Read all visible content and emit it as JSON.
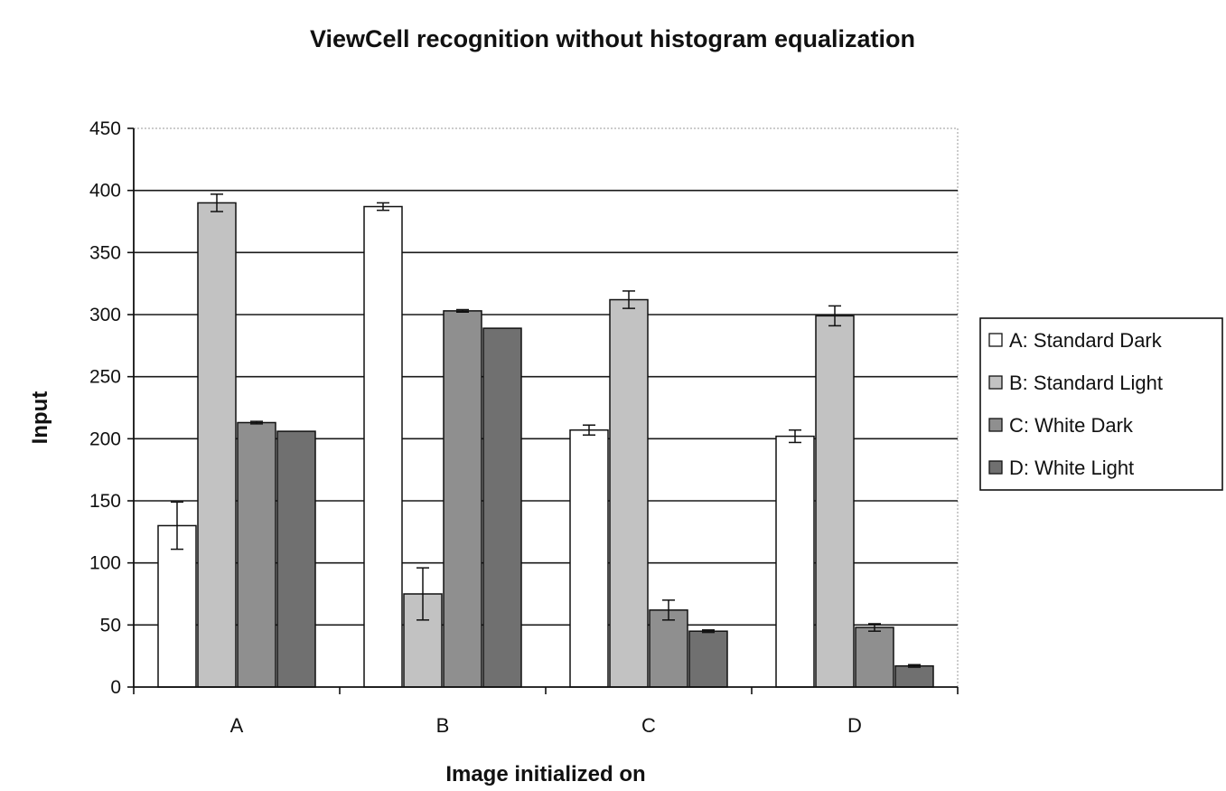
{
  "chart_data": {
    "type": "bar",
    "title": "ViewCell recognition without histogram equalization",
    "xlabel": "Image initialized on",
    "ylabel": "Input",
    "categories": [
      "A",
      "B",
      "C",
      "D"
    ],
    "ylim": [
      0,
      450
    ],
    "yticks": [
      0,
      50,
      100,
      150,
      200,
      250,
      300,
      350,
      400,
      450
    ],
    "grid": true,
    "legend_position": "right",
    "series": [
      {
        "name": "A: Standard Dark",
        "color": "#ffffff",
        "values": [
          130,
          387,
          207,
          202
        ],
        "errors": [
          19,
          3,
          4,
          5
        ]
      },
      {
        "name": "B: Standard Light",
        "color": "#c2c2c2",
        "values": [
          390,
          75,
          312,
          299
        ],
        "errors": [
          7,
          21,
          7,
          8
        ]
      },
      {
        "name": "C: White Dark",
        "color": "#8f8f8f",
        "values": [
          213,
          303,
          62,
          48
        ],
        "errors": [
          1,
          1,
          8,
          3
        ]
      },
      {
        "name": "D: White Light",
        "color": "#707070",
        "values": [
          206,
          289,
          45,
          17
        ],
        "errors": [
          0,
          0,
          1,
          1
        ]
      }
    ]
  }
}
